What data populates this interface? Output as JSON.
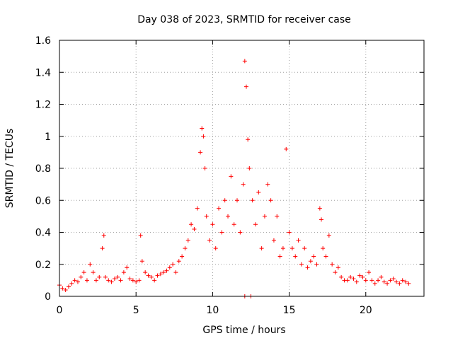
{
  "chart_data": {
    "type": "scatter",
    "title": "Day 038 of 2023, SRMTID for receiver case",
    "xlabel": "GPS time / hours",
    "ylabel": "SRMTID / TECUs",
    "xlim": [
      0,
      23.8
    ],
    "ylim": [
      0,
      1.6
    ],
    "xticks": [
      0,
      5,
      10,
      15,
      20
    ],
    "xtick_labels": [
      "0",
      "5",
      "10",
      "15",
      "20"
    ],
    "yticks": [
      0,
      0.2,
      0.4,
      0.6,
      0.8,
      1.0,
      1.2,
      1.4,
      1.6
    ],
    "ytick_labels": [
      "0",
      "0.2",
      "0.4",
      "0.6",
      "0.8",
      "1",
      "1.2",
      "1.4",
      "1.6"
    ],
    "grid": true,
    "marker": "+",
    "color": "#ff0000",
    "series": [
      {
        "name": "SRMTID",
        "x": [
          0.0,
          0.2,
          0.4,
          0.6,
          0.8,
          1.0,
          1.2,
          1.4,
          1.6,
          1.8,
          2.0,
          2.2,
          2.4,
          2.6,
          2.8,
          2.9,
          3.0,
          3.2,
          3.4,
          3.6,
          3.8,
          4.0,
          4.2,
          4.4,
          4.6,
          4.8,
          5.0,
          5.2,
          5.3,
          5.4,
          5.6,
          5.8,
          6.0,
          6.2,
          6.4,
          6.6,
          6.8,
          7.0,
          7.2,
          7.4,
          7.6,
          7.8,
          8.0,
          8.2,
          8.4,
          8.6,
          8.8,
          9.0,
          9.2,
          9.3,
          9.4,
          9.5,
          9.6,
          9.8,
          10.0,
          10.2,
          10.4,
          10.6,
          10.8,
          11.0,
          11.2,
          11.4,
          11.6,
          11.8,
          12.0,
          12.1,
          12.2,
          12.3,
          12.4,
          12.6,
          12.8,
          13.0,
          13.2,
          13.4,
          13.6,
          13.8,
          14.0,
          14.2,
          14.4,
          14.6,
          14.8,
          15.0,
          15.2,
          15.4,
          15.6,
          15.8,
          16.0,
          16.2,
          16.4,
          16.6,
          16.8,
          17.0,
          17.1,
          17.2,
          17.4,
          17.6,
          17.8,
          18.0,
          18.2,
          18.4,
          18.6,
          18.8,
          19.0,
          19.2,
          19.4,
          19.6,
          19.8,
          20.0,
          20.2,
          20.4,
          20.6,
          20.8,
          21.0,
          21.2,
          21.4,
          21.6,
          21.8,
          22.0,
          22.2,
          22.4,
          22.6,
          22.8
        ],
        "y": [
          0.07,
          0.05,
          0.04,
          0.06,
          0.08,
          0.1,
          0.09,
          0.12,
          0.15,
          0.1,
          0.2,
          0.15,
          0.1,
          0.12,
          0.3,
          0.38,
          0.12,
          0.1,
          0.09,
          0.11,
          0.12,
          0.1,
          0.15,
          0.18,
          0.11,
          0.1,
          0.09,
          0.1,
          0.38,
          0.22,
          0.15,
          0.13,
          0.12,
          0.1,
          0.13,
          0.14,
          0.15,
          0.16,
          0.18,
          0.2,
          0.15,
          0.22,
          0.25,
          0.3,
          0.35,
          0.45,
          0.42,
          0.55,
          0.9,
          1.05,
          1.0,
          0.8,
          0.5,
          0.35,
          0.45,
          0.3,
          0.55,
          0.4,
          0.6,
          0.5,
          0.75,
          0.45,
          0.6,
          0.4,
          0.7,
          1.47,
          1.31,
          0.98,
          0.8,
          0.6,
          0.45,
          0.65,
          0.3,
          0.5,
          0.7,
          0.6,
          0.35,
          0.5,
          0.25,
          0.3,
          0.92,
          0.4,
          0.3,
          0.25,
          0.35,
          0.2,
          0.3,
          0.18,
          0.22,
          0.25,
          0.2,
          0.55,
          0.48,
          0.3,
          0.25,
          0.38,
          0.2,
          0.15,
          0.18,
          0.12,
          0.1,
          0.1,
          0.12,
          0.11,
          0.09,
          0.13,
          0.12,
          0.1,
          0.15,
          0.1,
          0.08,
          0.1,
          0.12,
          0.09,
          0.08,
          0.1,
          0.11,
          0.09,
          0.08,
          0.1,
          0.09,
          0.08
        ],
        "outliers_at_zero": [
          12.1,
          12.5
        ]
      }
    ]
  }
}
